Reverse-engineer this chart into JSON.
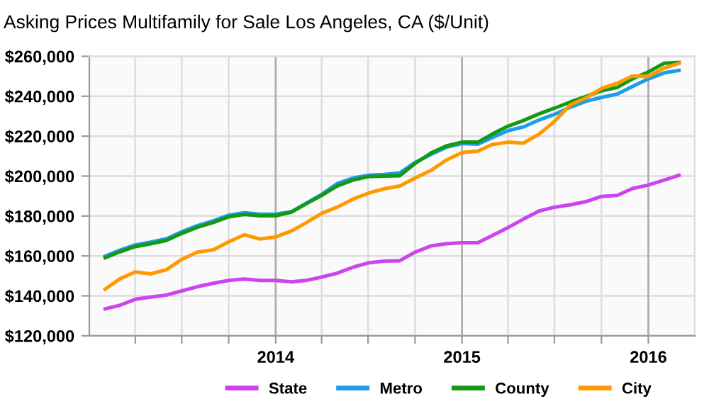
{
  "chart_data": {
    "type": "line",
    "title": "Asking Prices Multifamily for Sale Los Angeles, CA ($/Unit)",
    "x": [
      "2013-02",
      "2013-03",
      "2013-04",
      "2013-05",
      "2013-06",
      "2013-07",
      "2013-08",
      "2013-09",
      "2013-10",
      "2013-11",
      "2013-12",
      "2014-01",
      "2014-02",
      "2014-03",
      "2014-04",
      "2014-05",
      "2014-06",
      "2014-07",
      "2014-08",
      "2014-09",
      "2014-10",
      "2014-11",
      "2014-12",
      "2015-01",
      "2015-02",
      "2015-03",
      "2015-04",
      "2015-05",
      "2015-06",
      "2015-07",
      "2015-08",
      "2015-09",
      "2015-10",
      "2015-11",
      "2015-12",
      "2016-01",
      "2016-02",
      "2016-03"
    ],
    "series": [
      {
        "name": "State",
        "color": "#cc44ee",
        "values": [
          133500,
          135200,
          138300,
          139400,
          140400,
          142500,
          144600,
          146300,
          147700,
          148400,
          147700,
          147700,
          147000,
          147700,
          149400,
          151300,
          154300,
          156500,
          157400,
          157600,
          161900,
          165000,
          166100,
          166600,
          166600,
          170200,
          174200,
          178400,
          182500,
          184400,
          185600,
          187200,
          189800,
          190300,
          193800,
          195500,
          198000,
          200400
        ]
      },
      {
        "name": "Metro",
        "color": "#1e9ce8",
        "values": [
          159900,
          162800,
          165500,
          166900,
          168600,
          172100,
          175200,
          177600,
          180400,
          181600,
          180900,
          180900,
          182200,
          186300,
          190800,
          196200,
          199000,
          200400,
          200800,
          201600,
          206800,
          210800,
          214400,
          216300,
          216000,
          219300,
          222700,
          224600,
          228100,
          230900,
          234500,
          237500,
          239400,
          241100,
          244900,
          248700,
          251700,
          252900
        ]
      },
      {
        "name": "County",
        "color": "#139913",
        "values": [
          159100,
          162000,
          164700,
          166100,
          167800,
          171300,
          174400,
          176800,
          179600,
          180800,
          180100,
          180100,
          182000,
          186000,
          190300,
          195000,
          198000,
          199700,
          200000,
          200200,
          206300,
          211500,
          215100,
          217000,
          217000,
          221000,
          225000,
          227800,
          231200,
          234000,
          237100,
          239900,
          242700,
          244400,
          248700,
          252200,
          256500,
          256900
        ]
      },
      {
        "name": "City",
        "color": "#ff9900",
        "values": [
          143400,
          148400,
          152000,
          151000,
          153100,
          158300,
          161900,
          163100,
          167100,
          170600,
          168500,
          169500,
          172500,
          176500,
          181300,
          184400,
          188400,
          191400,
          193600,
          195000,
          199000,
          202800,
          208000,
          211800,
          212500,
          215800,
          217000,
          216500,
          221000,
          227400,
          235700,
          239200,
          243900,
          246500,
          250100,
          249900,
          254100,
          256500
        ]
      }
    ],
    "xlim": [
      "2013-01",
      "2016-04"
    ],
    "xticks": [
      {
        "value": "2013-04",
        "label": null
      },
      {
        "value": "2013-07",
        "label": null
      },
      {
        "value": "2013-10",
        "label": null
      },
      {
        "value": "2014-01",
        "label": "2014"
      },
      {
        "value": "2014-04",
        "label": null
      },
      {
        "value": "2014-07",
        "label": null
      },
      {
        "value": "2014-10",
        "label": null
      },
      {
        "value": "2015-01",
        "label": "2015"
      },
      {
        "value": "2015-04",
        "label": null
      },
      {
        "value": "2015-07",
        "label": null
      },
      {
        "value": "2015-10",
        "label": null
      },
      {
        "value": "2016-01",
        "label": "2016"
      }
    ],
    "ylim": [
      120000,
      260000
    ],
    "yticks": [
      {
        "value": 120000,
        "label": "$120,000"
      },
      {
        "value": 140000,
        "label": "$140,000"
      },
      {
        "value": 160000,
        "label": "$160,000"
      },
      {
        "value": 180000,
        "label": "$180,000"
      },
      {
        "value": 200000,
        "label": "$200,000"
      },
      {
        "value": 220000,
        "label": "$220,000"
      },
      {
        "value": 240000,
        "label": "$240,000"
      },
      {
        "value": 260000,
        "label": "$260,000"
      }
    ],
    "grid": true,
    "legend": "bottom",
    "marker": "none",
    "line_style": "solid"
  }
}
